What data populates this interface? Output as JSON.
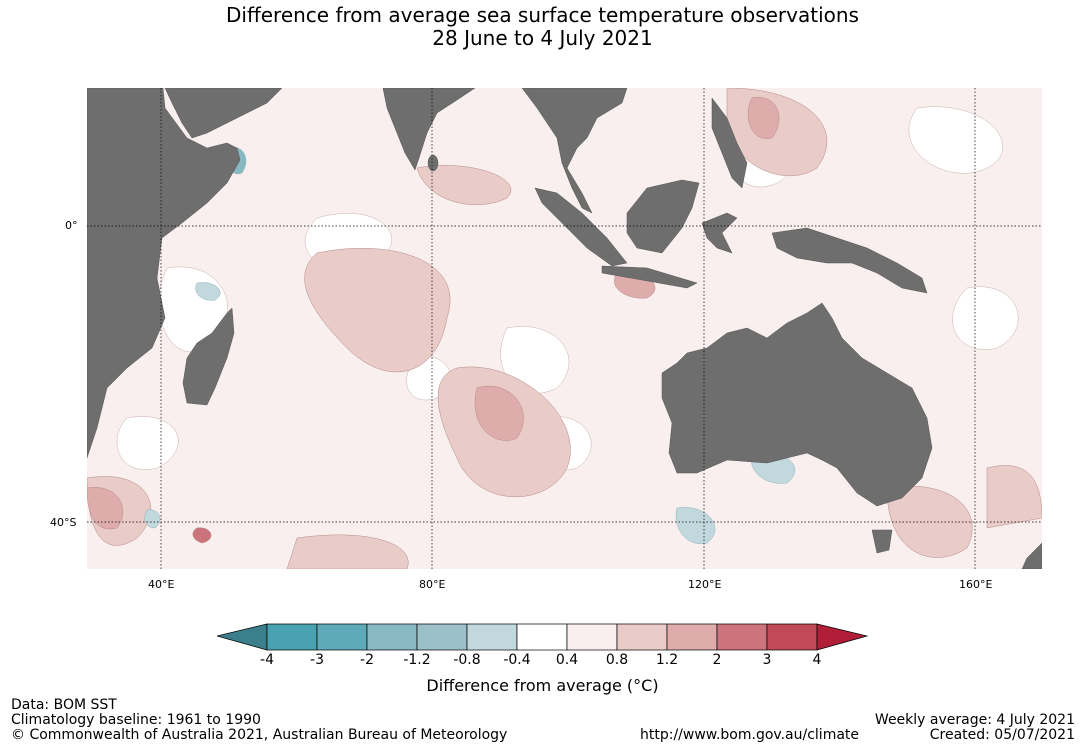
{
  "title": {
    "line1": "Difference from average sea surface temperature observations",
    "line2": "28 June to 4 July 2021"
  },
  "map": {
    "lon_labels": [
      "40°E",
      "80°E",
      "120°E",
      "160°E"
    ],
    "lat_labels": [
      "0°",
      "40°S"
    ],
    "land_color": "#6e6e6e"
  },
  "colorbar": {
    "label": "Difference from average (°C)",
    "ticks": [
      "-4",
      "-3",
      "-2",
      "-1.2",
      "-0.8",
      "-0.4",
      "0.4",
      "0.8",
      "1.2",
      "2",
      "3",
      "4"
    ],
    "colors": [
      "#3b7f8c",
      "#48a2b0",
      "#5eaab8",
      "#88b9c3",
      "#9cc0c9",
      "#c1d8dc",
      "#ffffff",
      "#f8efee",
      "#e9cbc8",
      "#dfacac",
      "#cc737b",
      "#c04a57",
      "#b01e38"
    ]
  },
  "footer": {
    "data": "Data: BOM SST",
    "baseline": "Climatology baseline: 1961 to 1990",
    "copyright": "© Commonwealth of Australia 2021, Australian Bureau of Meteorology",
    "url": "http://www.bom.gov.au/climate",
    "weekly": "Weekly average: 4 July 2021",
    "created": "Created: 05/07/2021"
  }
}
